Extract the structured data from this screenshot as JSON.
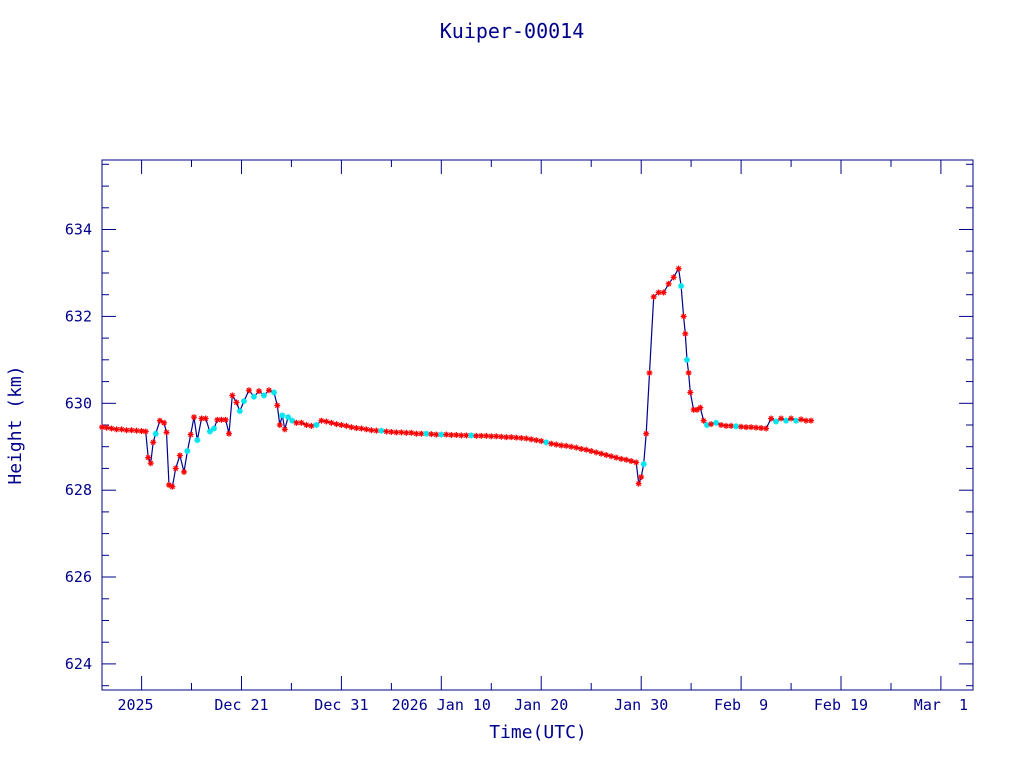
{
  "chart_data": {
    "type": "scatter",
    "title": "Kuiper-00014",
    "xlabel": "Time(UTC)",
    "ylabel": "Height (km)",
    "x_unit": "days",
    "xlim": [
      "2025-12-07T01:00:00Z",
      "2026-03-04T05:00:00Z"
    ],
    "ylim": [
      623.4,
      635.6
    ],
    "y_major_ticks": [
      624,
      626,
      628,
      630,
      632,
      634
    ],
    "y_minor_step": 0.5,
    "x_tick_labels": [
      {
        "date": "2025-12-11T00:00:00Z",
        "label": "2025 Dec 11",
        "display": "2025"
      },
      {
        "date": "2025-12-21T00:00:00Z",
        "label": "Dec 21"
      },
      {
        "date": "2025-12-31T00:00:00Z",
        "label": "Dec 31"
      },
      {
        "date": "2026-01-10T00:00:00Z",
        "label": "2026 Jan 10"
      },
      {
        "date": "2026-01-20T00:00:00Z",
        "label": "Jan 20"
      },
      {
        "date": "2026-01-30T00:00:00Z",
        "label": "Jan 30"
      },
      {
        "date": "2026-02-09T00:00:00Z",
        "label": "Feb  9"
      },
      {
        "date": "2026-02-19T00:00:00Z",
        "label": "Feb 19"
      },
      {
        "date": "2026-03-01T00:00:00Z",
        "label": "Mar  1"
      }
    ],
    "grid": false,
    "line_color": "#00008b",
    "marker_colors": {
      "red": "#ff0000",
      "cyan": "#00e5ee"
    },
    "series": [
      {
        "points": [
          {
            "x": "2025-12-07T01:00:00Z",
            "y": 629.45
          },
          {
            "x": "2025-12-07T12:00:00Z",
            "y": 629.44
          },
          {
            "x": "2025-12-08T00:00:00Z",
            "y": 629.42
          },
          {
            "x": "2025-12-08T12:00:00Z",
            "y": 629.4
          },
          {
            "x": "2025-12-09T00:00:00Z",
            "y": 629.4
          },
          {
            "x": "2025-12-09T12:00:00Z",
            "y": 629.38
          },
          {
            "x": "2025-12-10T00:00:00Z",
            "y": 629.38
          },
          {
            "x": "2025-12-10T12:00:00Z",
            "y": 629.37
          },
          {
            "x": "2025-12-11T00:00:00Z",
            "y": 629.36
          },
          {
            "x": "2025-12-11T10:00:00Z",
            "y": 629.35
          },
          {
            "x": "2025-12-11T16:00:00Z",
            "y": 628.75
          },
          {
            "x": "2025-12-11T22:00:00Z",
            "y": 628.62
          },
          {
            "x": "2025-12-12T04:00:00Z",
            "y": 629.1
          },
          {
            "x": "2025-12-12T10:00:00Z",
            "y": 629.3,
            "marker": "cyan"
          },
          {
            "x": "2025-12-12T20:00:00Z",
            "y": 629.6
          },
          {
            "x": "2025-12-13T06:00:00Z",
            "y": 629.55
          },
          {
            "x": "2025-12-13T12:00:00Z",
            "y": 629.33
          },
          {
            "x": "2025-12-13T18:00:00Z",
            "y": 628.12
          },
          {
            "x": "2025-12-14T02:00:00Z",
            "y": 628.08
          },
          {
            "x": "2025-12-14T10:00:00Z",
            "y": 628.5
          },
          {
            "x": "2025-12-14T20:00:00Z",
            "y": 628.8
          },
          {
            "x": "2025-12-15T06:00:00Z",
            "y": 628.42
          },
          {
            "x": "2025-12-15T14:00:00Z",
            "y": 628.9,
            "marker": "cyan"
          },
          {
            "x": "2025-12-15T22:00:00Z",
            "y": 629.28
          },
          {
            "x": "2025-12-16T06:00:00Z",
            "y": 629.68
          },
          {
            "x": "2025-12-16T14:00:00Z",
            "y": 629.15,
            "marker": "cyan"
          },
          {
            "x": "2025-12-17T00:00:00Z",
            "y": 629.65
          },
          {
            "x": "2025-12-17T10:00:00Z",
            "y": 629.65
          },
          {
            "x": "2025-12-17T20:00:00Z",
            "y": 629.35,
            "marker": "cyan"
          },
          {
            "x": "2025-12-18T06:00:00Z",
            "y": 629.42,
            "marker": "cyan"
          },
          {
            "x": "2025-12-18T14:00:00Z",
            "y": 629.62
          },
          {
            "x": "2025-12-19T00:00:00Z",
            "y": 629.62
          },
          {
            "x": "2025-12-19T10:00:00Z",
            "y": 629.62
          },
          {
            "x": "2025-12-19T18:00:00Z",
            "y": 629.3
          },
          {
            "x": "2025-12-20T02:00:00Z",
            "y": 630.18
          },
          {
            "x": "2025-12-20T12:00:00Z",
            "y": 630.02
          },
          {
            "x": "2025-12-20T20:00:00Z",
            "y": 629.82,
            "marker": "cyan"
          },
          {
            "x": "2025-12-21T06:00:00Z",
            "y": 630.05,
            "marker": "cyan"
          },
          {
            "x": "2025-12-21T18:00:00Z",
            "y": 630.3
          },
          {
            "x": "2025-12-22T06:00:00Z",
            "y": 630.15,
            "marker": "cyan"
          },
          {
            "x": "2025-12-22T18:00:00Z",
            "y": 630.28
          },
          {
            "x": "2025-12-23T06:00:00Z",
            "y": 630.18,
            "marker": "cyan"
          },
          {
            "x": "2025-12-23T18:00:00Z",
            "y": 630.3
          },
          {
            "x": "2025-12-24T06:00:00Z",
            "y": 630.25,
            "marker": "cyan"
          },
          {
            "x": "2025-12-24T14:00:00Z",
            "y": 629.95
          },
          {
            "x": "2025-12-24T20:00:00Z",
            "y": 629.5
          },
          {
            "x": "2025-12-25T02:00:00Z",
            "y": 629.72,
            "marker": "cyan"
          },
          {
            "x": "2025-12-25T08:00:00Z",
            "y": 629.4
          },
          {
            "x": "2025-12-25T16:00:00Z",
            "y": 629.68,
            "marker": "cyan"
          },
          {
            "x": "2025-12-26T02:00:00Z",
            "y": 629.6,
            "marker": "cyan"
          },
          {
            "x": "2025-12-26T12:00:00Z",
            "y": 629.55
          },
          {
            "x": "2025-12-27T00:00:00Z",
            "y": 629.55
          },
          {
            "x": "2025-12-27T12:00:00Z",
            "y": 629.5
          },
          {
            "x": "2025-12-28T00:00:00Z",
            "y": 629.48
          },
          {
            "x": "2025-12-28T12:00:00Z",
            "y": 629.5,
            "marker": "cyan"
          },
          {
            "x": "2025-12-29T00:00:00Z",
            "y": 629.6
          },
          {
            "x": "2025-12-29T12:00:00Z",
            "y": 629.58
          },
          {
            "x": "2025-12-30T00:00:00Z",
            "y": 629.55
          },
          {
            "x": "2025-12-30T12:00:00Z",
            "y": 629.52
          },
          {
            "x": "2025-12-31T00:00:00Z",
            "y": 629.5
          },
          {
            "x": "2025-12-31T12:00:00Z",
            "y": 629.48
          },
          {
            "x": "2026-01-01T00:00:00Z",
            "y": 629.45
          },
          {
            "x": "2026-01-01T12:00:00Z",
            "y": 629.43
          },
          {
            "x": "2026-01-02T00:00:00Z",
            "y": 629.42
          },
          {
            "x": "2026-01-02T12:00:00Z",
            "y": 629.4
          },
          {
            "x": "2026-01-03T00:00:00Z",
            "y": 629.38
          },
          {
            "x": "2026-01-03T12:00:00Z",
            "y": 629.37
          },
          {
            "x": "2026-01-04T00:00:00Z",
            "y": 629.37,
            "marker": "cyan"
          },
          {
            "x": "2026-01-04T12:00:00Z",
            "y": 629.35
          },
          {
            "x": "2026-01-05T00:00:00Z",
            "y": 629.34
          },
          {
            "x": "2026-01-05T12:00:00Z",
            "y": 629.33
          },
          {
            "x": "2026-01-06T00:00:00Z",
            "y": 629.33
          },
          {
            "x": "2026-01-06T12:00:00Z",
            "y": 629.32
          },
          {
            "x": "2026-01-07T00:00:00Z",
            "y": 629.32
          },
          {
            "x": "2026-01-07T12:00:00Z",
            "y": 629.3
          },
          {
            "x": "2026-01-08T00:00:00Z",
            "y": 629.3
          },
          {
            "x": "2026-01-08T12:00:00Z",
            "y": 629.3,
            "marker": "cyan"
          },
          {
            "x": "2026-01-09T00:00:00Z",
            "y": 629.29
          },
          {
            "x": "2026-01-09T12:00:00Z",
            "y": 629.28
          },
          {
            "x": "2026-01-10T00:00:00Z",
            "y": 629.28,
            "marker": "cyan"
          },
          {
            "x": "2026-01-10T12:00:00Z",
            "y": 629.28
          },
          {
            "x": "2026-01-11T00:00:00Z",
            "y": 629.27
          },
          {
            "x": "2026-01-11T12:00:00Z",
            "y": 629.27
          },
          {
            "x": "2026-01-12T00:00:00Z",
            "y": 629.26
          },
          {
            "x": "2026-01-12T12:00:00Z",
            "y": 629.26
          },
          {
            "x": "2026-01-13T00:00:00Z",
            "y": 629.26,
            "marker": "cyan"
          },
          {
            "x": "2026-01-13T12:00:00Z",
            "y": 629.25
          },
          {
            "x": "2026-01-14T00:00:00Z",
            "y": 629.25
          },
          {
            "x": "2026-01-14T12:00:00Z",
            "y": 629.25
          },
          {
            "x": "2026-01-15T00:00:00Z",
            "y": 629.24
          },
          {
            "x": "2026-01-15T12:00:00Z",
            "y": 629.24
          },
          {
            "x": "2026-01-16T00:00:00Z",
            "y": 629.23
          },
          {
            "x": "2026-01-16T12:00:00Z",
            "y": 629.22
          },
          {
            "x": "2026-01-17T00:00:00Z",
            "y": 629.22
          },
          {
            "x": "2026-01-17T12:00:00Z",
            "y": 629.21
          },
          {
            "x": "2026-01-18T00:00:00Z",
            "y": 629.2
          },
          {
            "x": "2026-01-18T12:00:00Z",
            "y": 629.19
          },
          {
            "x": "2026-01-19T00:00:00Z",
            "y": 629.17
          },
          {
            "x": "2026-01-19T12:00:00Z",
            "y": 629.15
          },
          {
            "x": "2026-01-20T00:00:00Z",
            "y": 629.13
          },
          {
            "x": "2026-01-20T12:00:00Z",
            "y": 629.1,
            "marker": "cyan"
          },
          {
            "x": "2026-01-21T00:00:00Z",
            "y": 629.07
          },
          {
            "x": "2026-01-21T12:00:00Z",
            "y": 629.05
          },
          {
            "x": "2026-01-22T00:00:00Z",
            "y": 629.03
          },
          {
            "x": "2026-01-22T12:00:00Z",
            "y": 629.02
          },
          {
            "x": "2026-01-23T00:00:00Z",
            "y": 629.0
          },
          {
            "x": "2026-01-23T12:00:00Z",
            "y": 628.98
          },
          {
            "x": "2026-01-24T00:00:00Z",
            "y": 628.95
          },
          {
            "x": "2026-01-24T12:00:00Z",
            "y": 628.93
          },
          {
            "x": "2026-01-25T00:00:00Z",
            "y": 628.9
          },
          {
            "x": "2026-01-25T12:00:00Z",
            "y": 628.87
          },
          {
            "x": "2026-01-26T00:00:00Z",
            "y": 628.84
          },
          {
            "x": "2026-01-26T12:00:00Z",
            "y": 628.81
          },
          {
            "x": "2026-01-27T00:00:00Z",
            "y": 628.78
          },
          {
            "x": "2026-01-27T12:00:00Z",
            "y": 628.75
          },
          {
            "x": "2026-01-28T00:00:00Z",
            "y": 628.72
          },
          {
            "x": "2026-01-28T12:00:00Z",
            "y": 628.7
          },
          {
            "x": "2026-01-29T00:00:00Z",
            "y": 628.67
          },
          {
            "x": "2026-01-29T12:00:00Z",
            "y": 628.64
          },
          {
            "x": "2026-01-29T18:00:00Z",
            "y": 628.15
          },
          {
            "x": "2026-01-30T00:00:00Z",
            "y": 628.3
          },
          {
            "x": "2026-01-30T06:00:00Z",
            "y": 628.6,
            "marker": "cyan"
          },
          {
            "x": "2026-01-30T12:00:00Z",
            "y": 629.3
          },
          {
            "x": "2026-01-30T20:00:00Z",
            "y": 630.7
          },
          {
            "x": "2026-01-31T06:00:00Z",
            "y": 632.45
          },
          {
            "x": "2026-01-31T18:00:00Z",
            "y": 632.55
          },
          {
            "x": "2026-02-01T06:00:00Z",
            "y": 632.55
          },
          {
            "x": "2026-02-01T18:00:00Z",
            "y": 632.75
          },
          {
            "x": "2026-02-02T06:00:00Z",
            "y": 632.9
          },
          {
            "x": "2026-02-02T18:00:00Z",
            "y": 633.1
          },
          {
            "x": "2026-02-03T00:00:00Z",
            "y": 632.7,
            "marker": "cyan"
          },
          {
            "x": "2026-02-03T06:00:00Z",
            "y": 632.0
          },
          {
            "x": "2026-02-03T10:00:00Z",
            "y": 631.6
          },
          {
            "x": "2026-02-03T14:00:00Z",
            "y": 631.0,
            "marker": "cyan"
          },
          {
            "x": "2026-02-03T18:00:00Z",
            "y": 630.7
          },
          {
            "x": "2026-02-03T22:00:00Z",
            "y": 630.25
          },
          {
            "x": "2026-02-04T06:00:00Z",
            "y": 629.85
          },
          {
            "x": "2026-02-04T14:00:00Z",
            "y": 629.85
          },
          {
            "x": "2026-02-04T22:00:00Z",
            "y": 629.9
          },
          {
            "x": "2026-02-05T06:00:00Z",
            "y": 629.6
          },
          {
            "x": "2026-02-05T14:00:00Z",
            "y": 629.5,
            "marker": "cyan"
          },
          {
            "x": "2026-02-06T00:00:00Z",
            "y": 629.52
          },
          {
            "x": "2026-02-06T12:00:00Z",
            "y": 629.55,
            "marker": "cyan"
          },
          {
            "x": "2026-02-07T00:00:00Z",
            "y": 629.5
          },
          {
            "x": "2026-02-07T12:00:00Z",
            "y": 629.48
          },
          {
            "x": "2026-02-08T00:00:00Z",
            "y": 629.48
          },
          {
            "x": "2026-02-08T12:00:00Z",
            "y": 629.47,
            "marker": "cyan"
          },
          {
            "x": "2026-02-09T00:00:00Z",
            "y": 629.46
          },
          {
            "x": "2026-02-09T12:00:00Z",
            "y": 629.45
          },
          {
            "x": "2026-02-10T00:00:00Z",
            "y": 629.45
          },
          {
            "x": "2026-02-10T12:00:00Z",
            "y": 629.44
          },
          {
            "x": "2026-02-11T00:00:00Z",
            "y": 629.43
          },
          {
            "x": "2026-02-11T12:00:00Z",
            "y": 629.42
          },
          {
            "x": "2026-02-12T00:00:00Z",
            "y": 629.65
          },
          {
            "x": "2026-02-12T12:00:00Z",
            "y": 629.58,
            "marker": "cyan"
          },
          {
            "x": "2026-02-13T00:00:00Z",
            "y": 629.65
          },
          {
            "x": "2026-02-13T12:00:00Z",
            "y": 629.6,
            "marker": "cyan"
          },
          {
            "x": "2026-02-14T00:00:00Z",
            "y": 629.65
          },
          {
            "x": "2026-02-14T12:00:00Z",
            "y": 629.6,
            "marker": "cyan"
          },
          {
            "x": "2026-02-15T00:00:00Z",
            "y": 629.63
          },
          {
            "x": "2026-02-15T12:00:00Z",
            "y": 629.6
          },
          {
            "x": "2026-02-16T00:00:00Z",
            "y": 629.6
          }
        ]
      }
    ]
  }
}
